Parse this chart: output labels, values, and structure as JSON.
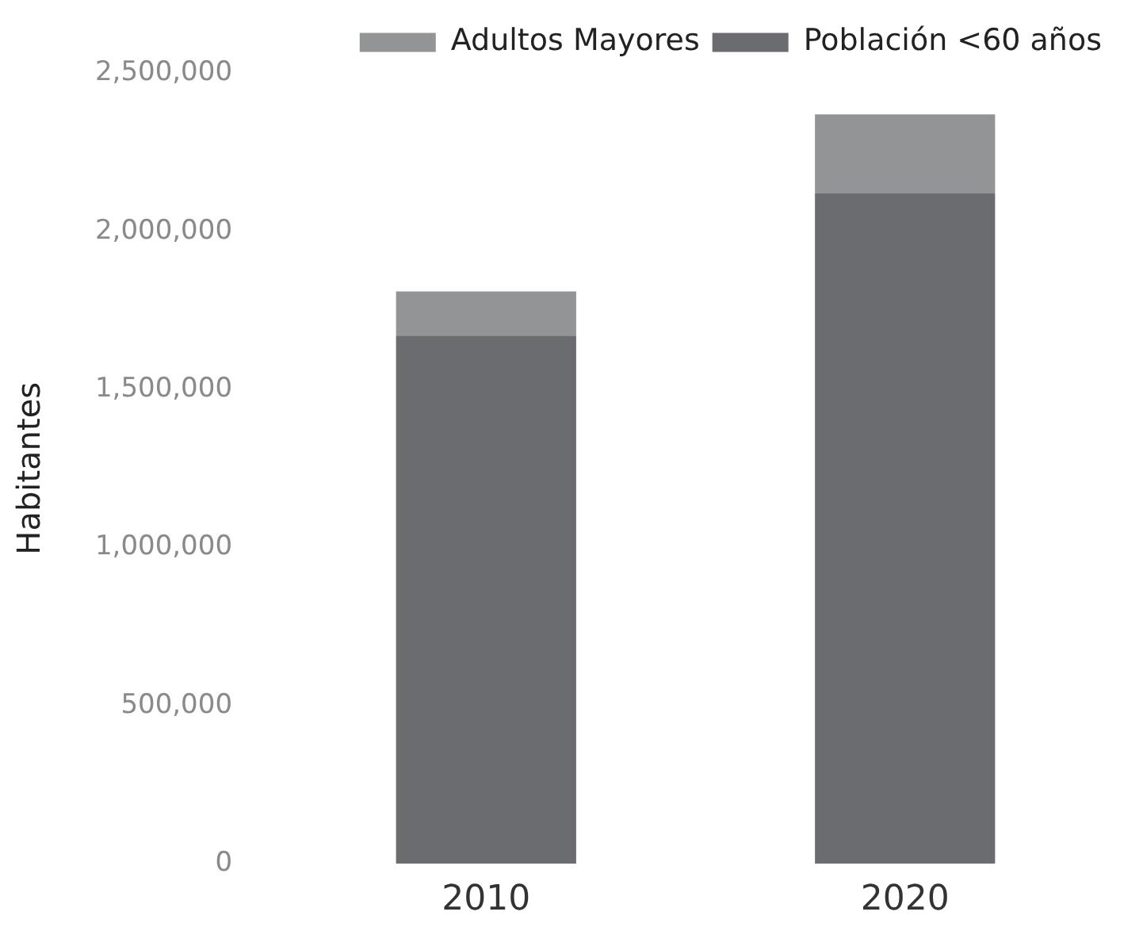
{
  "chart_data": {
    "type": "bar",
    "ylabel": "Habitantes",
    "categories": [
      "2010",
      "2020"
    ],
    "stacked": true,
    "legend": "top right",
    "grid": false,
    "series": [
      {
        "name": "Población <60 años",
        "color": "#6b6c6f",
        "values": [
          1670000,
          2120000
        ]
      },
      {
        "name": "Adultos Mayores",
        "color": "#939496",
        "values": [
          140000,
          250000
        ]
      }
    ],
    "ylim": [
      0,
      2500000
    ],
    "yticks": [
      0,
      {
        "value": 500000,
        "label": "500,000"
      },
      {
        "value": 1000000,
        "label": "1,000,000"
      },
      {
        "value": 1500000,
        "label": "1,500,000"
      },
      {
        "value": 2000000,
        "label": "2,000,000"
      },
      {
        "value": 2500000,
        "label": "2,500,000"
      }
    ]
  }
}
